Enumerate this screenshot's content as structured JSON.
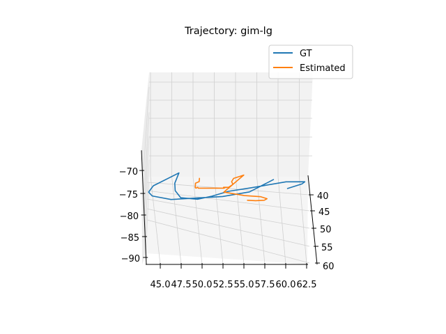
{
  "chart_data": {
    "type": "line",
    "projection": "3d",
    "title": "Trajectory: gim-lg",
    "xlabel": "",
    "ylabel": "",
    "zlabel": "",
    "x_ticks": [
      "45.0",
      "47.5",
      "50.0",
      "52.5",
      "55.0",
      "57.5",
      "60.0",
      "62.5"
    ],
    "y_ticks": [
      "40",
      "45",
      "50",
      "55",
      "60"
    ],
    "z_ticks": [
      "−70",
      "−75",
      "−80",
      "−85",
      "−90"
    ],
    "xlim": [
      43.5,
      64.5
    ],
    "ylim": [
      37,
      62
    ],
    "zlim": [
      -91,
      -65
    ],
    "grid": true,
    "legend": {
      "placement": "top-right"
    },
    "colors": {
      "GT": "#1f77b4",
      "Estimated": "#ff7f0e"
    },
    "series": [
      {
        "name": "GT",
        "points": [
          {
            "x": 60.3,
            "y": 37.5,
            "z": -67.0
          },
          {
            "x": 62.0,
            "y": 38.0,
            "z": -69.5
          },
          {
            "x": 62.3,
            "y": 39.5,
            "z": -72.5
          },
          {
            "x": 60.0,
            "y": 41.0,
            "z": -74.5
          },
          {
            "x": 55.8,
            "y": 43.0,
            "z": -75.0
          },
          {
            "x": 53.0,
            "y": 44.0,
            "z": -75.0
          },
          {
            "x": 51.0,
            "y": 44.5,
            "z": -74.0
          },
          {
            "x": 49.3,
            "y": 44.5,
            "z": -73.0
          },
          {
            "x": 47.3,
            "y": 44.5,
            "z": -73.5
          },
          {
            "x": 46.6,
            "y": 45.5,
            "z": -77.0
          },
          {
            "x": 46.5,
            "y": 47.0,
            "z": -81.0
          },
          {
            "x": 46.9,
            "y": 50.0,
            "z": -87.0
          },
          {
            "x": 44.0,
            "y": 45.0,
            "z": -78.0
          },
          {
            "x": 43.5,
            "y": 43.0,
            "z": -73.5
          },
          {
            "x": 44.0,
            "y": 41.0,
            "z": -69.5
          },
          {
            "x": 46.3,
            "y": 39.5,
            "z": -66.0
          },
          {
            "x": 52.4,
            "y": 41.5,
            "z": -70.0
          },
          {
            "x": 55.5,
            "y": 45.0,
            "z": -76.0
          },
          {
            "x": 58.2,
            "y": 50.0,
            "z": -85.0
          }
        ]
      },
      {
        "name": "Estimated",
        "points": [
          {
            "x": 49.4,
            "y": 48.5,
            "z": -84.0
          },
          {
            "x": 49.4,
            "y": 47.5,
            "z": -82.0
          },
          {
            "x": 49.0,
            "y": 46.5,
            "z": -80.5
          },
          {
            "x": 49.0,
            "y": 45.5,
            "z": -78.0
          },
          {
            "x": 49.1,
            "y": 44.8,
            "z": -77.0
          },
          {
            "x": 49.3,
            "y": 45.0,
            "z": -77.5
          },
          {
            "x": 49.4,
            "y": 44.8,
            "z": -77.0
          },
          {
            "x": 52.5,
            "y": 44.8,
            "z": -77.0
          },
          {
            "x": 52.4,
            "y": 45.0,
            "z": -77.5
          },
          {
            "x": 53.0,
            "y": 45.0,
            "z": -77.5
          },
          {
            "x": 53.5,
            "y": 45.5,
            "z": -79.0
          },
          {
            "x": 53.3,
            "y": 47.0,
            "z": -81.5
          },
          {
            "x": 53.5,
            "y": 48.0,
            "z": -83.5
          },
          {
            "x": 54.7,
            "y": 48.5,
            "z": -85.0
          },
          {
            "x": 52.5,
            "y": 43.0,
            "z": -73.5
          },
          {
            "x": 55.0,
            "y": 42.0,
            "z": -71.0
          },
          {
            "x": 57.0,
            "y": 40.5,
            "z": -68.5
          },
          {
            "x": 57.8,
            "y": 39.0,
            "z": -65.5
          },
          {
            "x": 57.5,
            "y": 37.8,
            "z": -63.0
          },
          {
            "x": 56.5,
            "y": 37.3,
            "z": -62.0
          },
          {
            "x": 55.5,
            "y": 37.8,
            "z": -63.0
          }
        ]
      }
    ]
  }
}
